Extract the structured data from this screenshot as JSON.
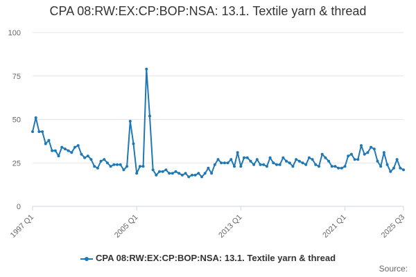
{
  "chart_data": {
    "type": "line",
    "title": "CPA 08:RW:EX:CP:BOP:NSA: 13.1. Textile yarn & thread",
    "xlabel": "",
    "ylabel": "",
    "ylim": [
      0,
      100
    ],
    "y_ticks": [
      0,
      25,
      50,
      75,
      100
    ],
    "x_tick_labels": [
      "1997 Q1",
      "2005 Q1",
      "2013 Q1",
      "2021 Q1",
      "2025 Q3"
    ],
    "grid": true,
    "legend_position": "bottom",
    "series_color": "#1f78b4",
    "x_start": "1997 Q1",
    "x_end": "2025 Q3",
    "series": [
      {
        "name": "CPA 08:RW:EX:CP:BOP:NSA: 13.1. Textile yarn & thread",
        "values": [
          43,
          51,
          43,
          43,
          36,
          38,
          32,
          32,
          29,
          34,
          33,
          32,
          31,
          34,
          35,
          30,
          28,
          29,
          27,
          23,
          22,
          26,
          27,
          25,
          23,
          24,
          24,
          24,
          21,
          23,
          49,
          36,
          19,
          23,
          23,
          79,
          52,
          21,
          18,
          20,
          20,
          21,
          19,
          19,
          20,
          19,
          18,
          19,
          17,
          18,
          18,
          19,
          17,
          19,
          22,
          19,
          24,
          27,
          25,
          25,
          25,
          27,
          23,
          31,
          23,
          28,
          28,
          26,
          24,
          27,
          24,
          24,
          23,
          28,
          25,
          24,
          24,
          28,
          26,
          25,
          23,
          27,
          26,
          25,
          24,
          28,
          27,
          24,
          23,
          30,
          28,
          26,
          23,
          23,
          22,
          22,
          23,
          29,
          30,
          27,
          27,
          35,
          30,
          31,
          34,
          33,
          26,
          23,
          31,
          24,
          20,
          22,
          27,
          22,
          21
        ]
      }
    ]
  },
  "source_label": "Source:"
}
